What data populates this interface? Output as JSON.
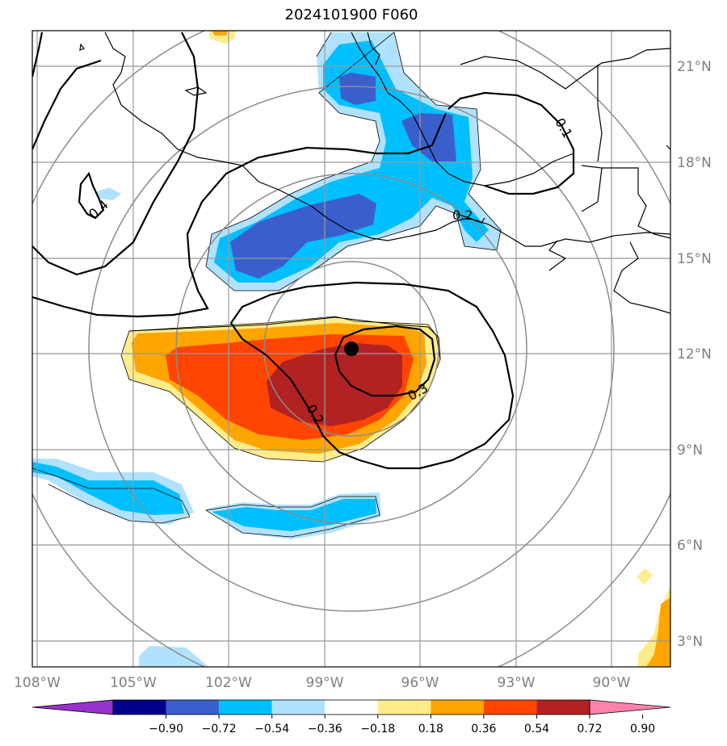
{
  "title": "2024101900 F060",
  "lat_labels": [
    "21°N",
    "18°N",
    "15°N",
    "12°N",
    "9°N",
    "6°N",
    "3°N"
  ],
  "lon_labels": [
    "108°W",
    "105°W",
    "102°W",
    "99°W",
    "96°W",
    "93°W",
    "90°W"
  ],
  "contour_labels": [
    "0.4",
    "0.2",
    "0.3",
    "0.2",
    "0.1"
  ],
  "colorbar": {
    "ticks": [
      "−0.90",
      "−0.72",
      "−0.54",
      "−0.36",
      "−0.18",
      "0.18",
      "0.36",
      "0.54",
      "0.72",
      "0.90"
    ],
    "colors": [
      "#9932cc",
      "#00008b",
      "#3a5fcd",
      "#00bfff",
      "#b0e2ff",
      "#ffffff",
      "#ffec8b",
      "#ffa500",
      "#ff4500",
      "#b22222",
      "#ff82ab"
    ]
  },
  "center_marker": "storm-center"
}
